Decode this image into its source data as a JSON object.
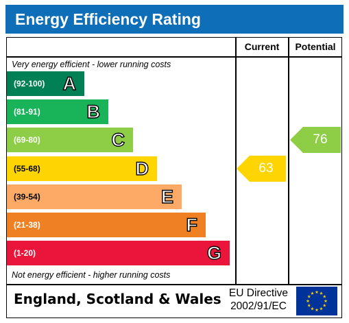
{
  "title": "Energy Efficiency Rating",
  "columns": {
    "current": "Current",
    "potential": "Potential"
  },
  "notes": {
    "top": "Very energy efficient - lower running costs",
    "bottom": "Not energy efficient - higher running costs"
  },
  "footer": {
    "country": "England, Scotland & Wales",
    "directive_line1": "EU Directive",
    "directive_line2": "2002/91/EC",
    "flag_icon": "eu-flag-icon"
  },
  "colors": {
    "header": "#0e6eb8",
    "A": "#008054",
    "B": "#19b459",
    "C": "#8dce46",
    "D": "#ffd500",
    "E": "#fcaa65",
    "F": "#ef8023",
    "G": "#e9153b"
  },
  "chart_data": {
    "type": "bar",
    "bands": [
      {
        "letter": "A",
        "range": "(92-100)",
        "min": 92,
        "max": 100
      },
      {
        "letter": "B",
        "range": "(81-91)",
        "min": 81,
        "max": 91
      },
      {
        "letter": "C",
        "range": "(69-80)",
        "min": 69,
        "max": 80
      },
      {
        "letter": "D",
        "range": "(55-68)",
        "min": 55,
        "max": 68
      },
      {
        "letter": "E",
        "range": "(39-54)",
        "min": 39,
        "max": 54
      },
      {
        "letter": "F",
        "range": "(21-38)",
        "min": 21,
        "max": 38
      },
      {
        "letter": "G",
        "range": "(1-20)",
        "min": 1,
        "max": 20
      }
    ],
    "series": [
      {
        "name": "Current",
        "value": 63,
        "band": "D"
      },
      {
        "name": "Potential",
        "value": 76,
        "band": "C"
      }
    ]
  }
}
